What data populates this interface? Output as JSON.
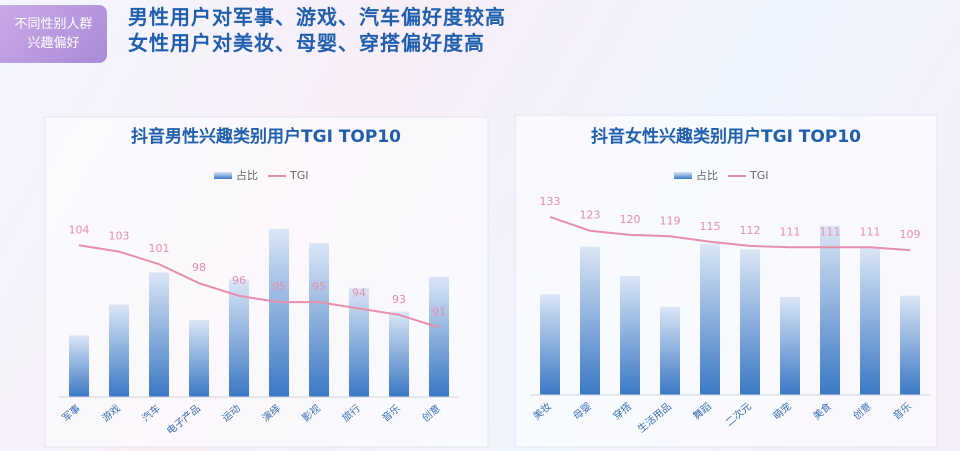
{
  "header": {
    "tag": [
      "不同性别人群",
      "兴趣偏好"
    ],
    "headlines": [
      "男性用户对军事、游戏、汽车偏好度较高",
      "女性用户对美妆、母婴、穿搭偏好度高"
    ]
  },
  "chart_data": [
    {
      "type": "bar_line",
      "title": "抖音男性兴趣类别用户TGI TOP10",
      "categories": [
        "军事",
        "游戏",
        "汽车",
        "电子产品",
        "运动",
        "演绎",
        "影视",
        "旅行",
        "音乐",
        "创意"
      ],
      "series": [
        {
          "name": "占比",
          "color": "#3a78c4",
          "values": [
            4.4,
            6.6,
            8.9,
            5.5,
            8.4,
            12,
            11,
            7.8,
            6.1,
            8.6
          ]
        },
        {
          "name": "TGI",
          "color": "#e58fac",
          "axis": "y2",
          "values": [
            104,
            103,
            101,
            98,
            96,
            95,
            95,
            94,
            93,
            91
          ]
        }
      ],
      "ylim": [
        0,
        14
      ],
      "y2lim": [
        80,
        111
      ]
    },
    {
      "type": "bar_line",
      "title": "抖音女性兴趣类别用户TGI TOP10",
      "categories": [
        "美妆",
        "母婴",
        "穿搭",
        "生活用品",
        "舞蹈",
        "二次元",
        "萌宠",
        "美食",
        "创意",
        "音乐"
      ],
      "series": [
        {
          "name": "占比",
          "color": "#3a78c4",
          "values": [
            7.2,
            10.6,
            8.5,
            6.3,
            10.8,
            10.4,
            7.0,
            12.1,
            10.5,
            7.1
          ]
        },
        {
          "name": "TGI",
          "color": "#e58fac",
          "axis": "y2",
          "values": [
            133,
            123,
            120,
            119,
            115,
            112,
            111,
            111,
            111,
            109
          ]
        }
      ],
      "ylim": [
        0,
        14
      ],
      "y2lim": [
        4,
        146
      ]
    }
  ]
}
